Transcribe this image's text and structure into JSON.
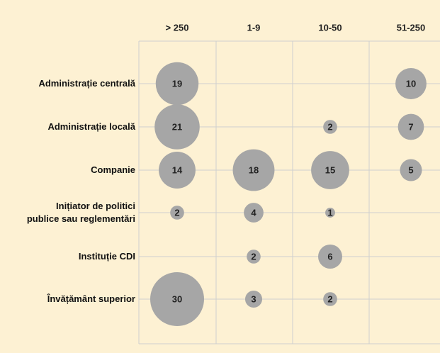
{
  "chart_data": {
    "type": "bubble-matrix",
    "columns": [
      "> 250",
      "1-9",
      "10-50",
      "51-250"
    ],
    "rows": [
      "Administrație centrală",
      "Administrație locală",
      "Companie",
      "Inițiator de politici\npublice sau reglementări",
      "Instituție CDI",
      "Învățământ superior"
    ],
    "values": [
      [
        19,
        null,
        null,
        10
      ],
      [
        21,
        null,
        2,
        7
      ],
      [
        14,
        18,
        15,
        5
      ],
      [
        2,
        4,
        1,
        null
      ],
      [
        null,
        2,
        6,
        null
      ],
      [
        30,
        3,
        2,
        null
      ]
    ],
    "color": "#a6a6a6"
  }
}
